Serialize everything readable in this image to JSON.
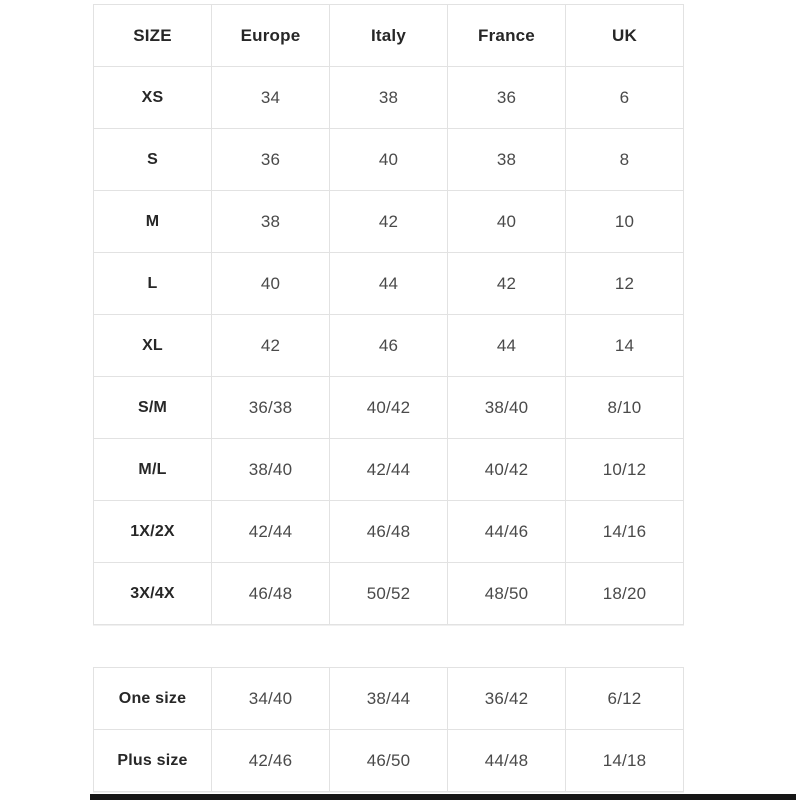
{
  "page": {
    "background": "#ffffff",
    "border_color": "#e2e2e2",
    "header_text_color": "#272727",
    "cell_text_color": "#4a4a4a",
    "bottom_bar_color": "#161616"
  },
  "main_table": {
    "columns": [
      "SIZE",
      "Europe",
      "Italy",
      "France",
      "UK"
    ],
    "rows": [
      {
        "label": "XS",
        "values": [
          "34",
          "38",
          "36",
          "6"
        ]
      },
      {
        "label": "S",
        "values": [
          "36",
          "40",
          "38",
          "8"
        ]
      },
      {
        "label": "M",
        "values": [
          "38",
          "42",
          "40",
          "10"
        ]
      },
      {
        "label": "L",
        "values": [
          "40",
          "44",
          "42",
          "12"
        ]
      },
      {
        "label": "XL",
        "values": [
          "42",
          "46",
          "44",
          "14"
        ]
      },
      {
        "label": "S/M",
        "values": [
          "36/38",
          "40/42",
          "38/40",
          "8/10"
        ]
      },
      {
        "label": "M/L",
        "values": [
          "38/40",
          "42/44",
          "40/42",
          "10/12"
        ]
      },
      {
        "label": "1X/2X",
        "values": [
          "42/44",
          "46/48",
          "44/46",
          "14/16"
        ]
      },
      {
        "label": "3X/4X",
        "values": [
          "46/48",
          "50/52",
          "48/50",
          "18/20"
        ]
      }
    ]
  },
  "secondary_table": {
    "rows": [
      {
        "label": "One size",
        "values": [
          "34/40",
          "38/44",
          "36/42",
          "6/12"
        ]
      },
      {
        "label": "Plus size",
        "values": [
          "42/46",
          "46/50",
          "44/48",
          "14/18"
        ]
      }
    ]
  }
}
